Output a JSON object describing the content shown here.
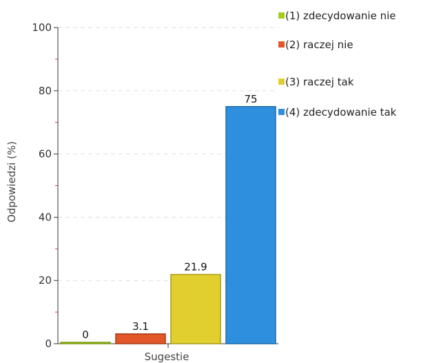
{
  "chart_data": {
    "type": "bar",
    "categories": [
      "(1) zdecydowanie nie",
      "(2) raczej nie",
      "(3) raczej tak",
      "(4) zdecydowanie tak"
    ],
    "values": [
      0,
      3.1,
      21.9,
      75
    ],
    "value_labels": [
      "0",
      "3.1",
      "21.9",
      "75"
    ],
    "xlabel": "Sugestie",
    "ylabel": "Odpowiedzi (%)",
    "ylim": [
      0,
      100
    ],
    "yticks": [
      "0",
      "20",
      "40",
      "60",
      "80",
      "100"
    ],
    "grid": true,
    "legend_position": "right",
    "series_colors": [
      "#a6cd1e",
      "#e2572a",
      "#e0cf2e",
      "#2f8fdf"
    ],
    "series_border_colors": [
      "#7a9a10",
      "#a63a15",
      "#a89a17",
      "#1f6aa8"
    ]
  },
  "legend": {
    "items": [
      {
        "label": "(1) zdecydowanie nie",
        "color": "#a6cd1e"
      },
      {
        "label": "(2) raczej nie",
        "color": "#e2572a"
      },
      {
        "label": "(3) raczej tak",
        "color": "#e0cf2e"
      },
      {
        "label": "(4) zdecydowanie tak",
        "color": "#2f8fdf"
      }
    ]
  }
}
